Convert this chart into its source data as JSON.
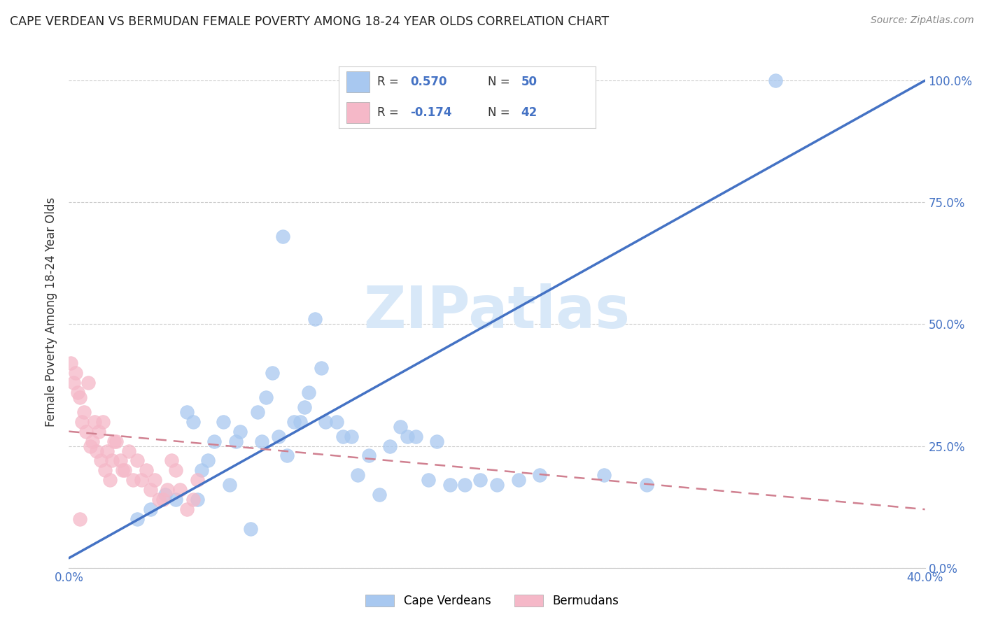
{
  "title": "CAPE VERDEAN VS BERMUDAN FEMALE POVERTY AMONG 18-24 YEAR OLDS CORRELATION CHART",
  "source": "Source: ZipAtlas.com",
  "ylabel": "Female Poverty Among 18-24 Year Olds",
  "xlim": [
    0.0,
    0.4
  ],
  "ylim": [
    0.0,
    1.05
  ],
  "x_ticks": [
    0.0,
    0.05,
    0.1,
    0.15,
    0.2,
    0.25,
    0.3,
    0.35,
    0.4
  ],
  "y_ticks": [
    0.0,
    0.25,
    0.5,
    0.75,
    1.0
  ],
  "y_tick_labels_right": [
    "0.0%",
    "25.0%",
    "50.0%",
    "75.0%",
    "100.0%"
  ],
  "cv_color": "#A8C8F0",
  "berm_color": "#F5B8C8",
  "trendline_cv_color": "#4472C4",
  "trendline_berm_color": "#D08090",
  "background_color": "#FFFFFF",
  "watermark": "ZIPatlas",
  "legend_text_color": "#4472C4",
  "cv_scatter_x": [
    0.032,
    0.038,
    0.045,
    0.05,
    0.055,
    0.058,
    0.06,
    0.062,
    0.065,
    0.068,
    0.072,
    0.075,
    0.078,
    0.08,
    0.085,
    0.088,
    0.09,
    0.092,
    0.095,
    0.098,
    0.1,
    0.102,
    0.105,
    0.108,
    0.11,
    0.112,
    0.115,
    0.118,
    0.12,
    0.125,
    0.128,
    0.132,
    0.135,
    0.14,
    0.145,
    0.15,
    0.155,
    0.158,
    0.162,
    0.168,
    0.172,
    0.178,
    0.185,
    0.192,
    0.2,
    0.21,
    0.22,
    0.25,
    0.27,
    0.33
  ],
  "cv_scatter_y": [
    0.1,
    0.12,
    0.15,
    0.14,
    0.32,
    0.3,
    0.14,
    0.2,
    0.22,
    0.26,
    0.3,
    0.17,
    0.26,
    0.28,
    0.08,
    0.32,
    0.26,
    0.35,
    0.4,
    0.27,
    0.68,
    0.23,
    0.3,
    0.3,
    0.33,
    0.36,
    0.51,
    0.41,
    0.3,
    0.3,
    0.27,
    0.27,
    0.19,
    0.23,
    0.15,
    0.25,
    0.29,
    0.27,
    0.27,
    0.18,
    0.26,
    0.17,
    0.17,
    0.18,
    0.17,
    0.18,
    0.19,
    0.19,
    0.17,
    1.0
  ],
  "berm_scatter_x": [
    0.001,
    0.002,
    0.003,
    0.004,
    0.005,
    0.005,
    0.006,
    0.007,
    0.008,
    0.009,
    0.01,
    0.011,
    0.012,
    0.013,
    0.014,
    0.015,
    0.016,
    0.017,
    0.018,
    0.019,
    0.02,
    0.021,
    0.022,
    0.024,
    0.025,
    0.026,
    0.028,
    0.03,
    0.032,
    0.034,
    0.036,
    0.038,
    0.04,
    0.042,
    0.044,
    0.046,
    0.048,
    0.05,
    0.052,
    0.055,
    0.058,
    0.06
  ],
  "berm_scatter_y": [
    0.42,
    0.38,
    0.4,
    0.36,
    0.35,
    0.1,
    0.3,
    0.32,
    0.28,
    0.38,
    0.25,
    0.26,
    0.3,
    0.24,
    0.28,
    0.22,
    0.3,
    0.2,
    0.24,
    0.18,
    0.22,
    0.26,
    0.26,
    0.22,
    0.2,
    0.2,
    0.24,
    0.18,
    0.22,
    0.18,
    0.2,
    0.16,
    0.18,
    0.14,
    0.14,
    0.16,
    0.22,
    0.2,
    0.16,
    0.12,
    0.14,
    0.18
  ],
  "cv_trendline_x": [
    0.0,
    0.4
  ],
  "cv_trendline_y": [
    0.02,
    1.0
  ],
  "berm_trendline_x": [
    0.0,
    0.4
  ],
  "berm_trendline_y": [
    0.28,
    0.12
  ]
}
